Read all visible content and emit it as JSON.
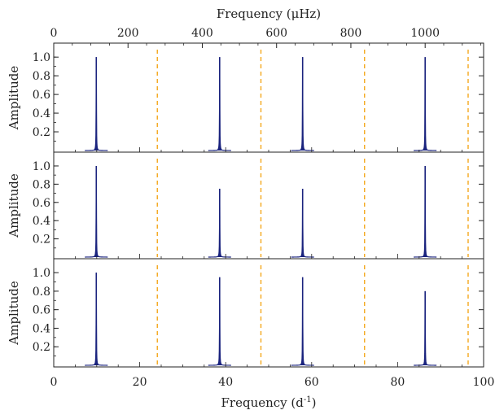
{
  "chart_data": {
    "type": "line",
    "figure": {
      "top_axis_label": "Frequency (μHz)",
      "top_axis_ticks": [
        0,
        200,
        400,
        600,
        800,
        1000
      ],
      "top_axis_range": [
        0,
        1157.4
      ],
      "bottom_axis_label": "Frequency (d",
      "bottom_axis_label_sup": "-1",
      "bottom_axis_label_close": ")",
      "bottom_axis_ticks": [
        0,
        20,
        40,
        60,
        80,
        100
      ],
      "bottom_axis_range": [
        0,
        100
      ],
      "colors": {
        "spectrum": "#1a237e",
        "nyquist_line": "#f4a81d",
        "axis": "#222222"
      }
    },
    "panels": [
      {
        "ylabel": "Amplitude",
        "ylim": [
          0,
          1.08
        ],
        "yticks": [
          "0.2",
          "0.4",
          "0.6",
          "0.8",
          "1.0"
        ],
        "peaks": [
          {
            "x": 9.9,
            "amplitude": 1.0
          },
          {
            "x": 38.6,
            "amplitude": 1.0
          },
          {
            "x": 57.9,
            "amplitude": 1.0
          },
          {
            "x": 86.4,
            "amplitude": 1.0
          }
        ],
        "dashed_lines_x": [
          24.1,
          48.2,
          72.3,
          96.4
        ]
      },
      {
        "ylabel": "Amplitude",
        "ylim": [
          0,
          1.08
        ],
        "yticks": [
          "0.2",
          "0.4",
          "0.6",
          "0.8",
          "1.0"
        ],
        "peaks": [
          {
            "x": 9.9,
            "amplitude": 1.0
          },
          {
            "x": 38.6,
            "amplitude": 0.75
          },
          {
            "x": 57.9,
            "amplitude": 0.75
          },
          {
            "x": 86.4,
            "amplitude": 1.0
          }
        ],
        "dashed_lines_x": [
          24.1,
          48.2,
          72.3,
          96.4
        ]
      },
      {
        "ylabel": "Amplitude",
        "ylim": [
          0,
          1.08
        ],
        "yticks": [
          "0.2",
          "0.4",
          "0.6",
          "0.8",
          "1.0"
        ],
        "peaks": [
          {
            "x": 9.9,
            "amplitude": 1.0
          },
          {
            "x": 38.6,
            "amplitude": 0.95
          },
          {
            "x": 57.9,
            "amplitude": 0.95
          },
          {
            "x": 86.4,
            "amplitude": 0.8
          }
        ],
        "dashed_lines_x": [
          24.1,
          48.2,
          72.3,
          96.4
        ]
      }
    ]
  }
}
